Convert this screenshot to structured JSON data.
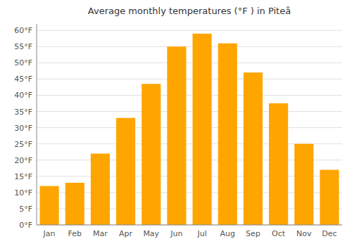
{
  "chart_data": {
    "type": "bar",
    "title": "Average monthly temperatures (°F ) in Piteå",
    "categories": [
      "Jan",
      "Feb",
      "Mar",
      "Apr",
      "May",
      "Jun",
      "Jul",
      "Aug",
      "Sep",
      "Oct",
      "Nov",
      "Dec"
    ],
    "values": [
      12,
      13,
      22,
      33,
      43.5,
      55,
      59,
      56,
      47,
      37.5,
      25,
      17
    ],
    "color": "#FFA500",
    "ylim": [
      0,
      62
    ],
    "yticks": [
      {
        "value": 0,
        "label": "0°F"
      },
      {
        "value": 5,
        "label": "5°F"
      },
      {
        "value": 10,
        "label": "10°F"
      },
      {
        "value": 15,
        "label": "15°F"
      },
      {
        "value": 20,
        "label": "20°F"
      },
      {
        "value": 25,
        "label": "25°F"
      },
      {
        "value": 30,
        "label": "30°F"
      },
      {
        "value": 35,
        "label": "35°F"
      },
      {
        "value": 40,
        "label": "40°F"
      },
      {
        "value": 45,
        "label": "45°F"
      },
      {
        "value": 50,
        "label": "50°F"
      },
      {
        "value": 55,
        "label": "55°F"
      },
      {
        "value": 60,
        "label": "60°F"
      }
    ],
    "grid": true
  }
}
